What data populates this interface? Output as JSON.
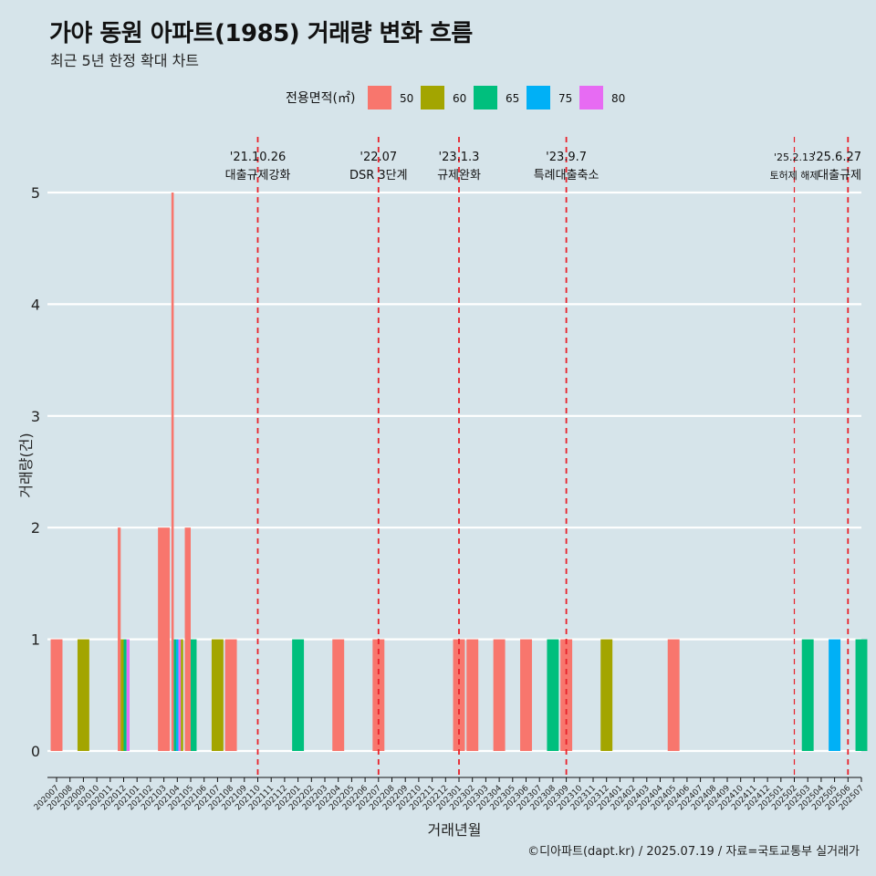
{
  "title": "가야 동원 아파트(1985) 거래량 변화 흐름",
  "subtitle": "최근 5년 한정 확대 차트",
  "caption": "©디아파트(dapt.kr) / 2025.07.19 / 자료=국토교통부 실거래가",
  "chart_data": {
    "type": "bar",
    "xlabel": "거래년월",
    "ylabel": "거래량(건)",
    "ylim": [
      0,
      5
    ],
    "yticks": [
      0,
      1,
      2,
      3,
      4,
      5
    ],
    "grid": true,
    "legend": {
      "title": "전용면적(㎡)",
      "placement": "top",
      "entries": [
        {
          "name": "50",
          "color": "#F8766D"
        },
        {
          "name": "60",
          "color": "#A3A500"
        },
        {
          "name": "65",
          "color": "#00BF7D"
        },
        {
          "name": "75",
          "color": "#00B0F6"
        },
        {
          "name": "80",
          "color": "#E76BF3"
        }
      ]
    },
    "categories": [
      "202007",
      "202008",
      "202009",
      "202010",
      "202011",
      "202012",
      "202101",
      "202102",
      "202103",
      "202104",
      "202105",
      "202106",
      "202107",
      "202108",
      "202109",
      "202110",
      "202111",
      "202112",
      "202201",
      "202202",
      "202203",
      "202204",
      "202205",
      "202206",
      "202207",
      "202208",
      "202209",
      "202210",
      "202211",
      "202212",
      "202301",
      "202302",
      "202303",
      "202304",
      "202305",
      "202306",
      "202307",
      "202308",
      "202309",
      "202310",
      "202311",
      "202312",
      "202401",
      "202402",
      "202403",
      "202404",
      "202405",
      "202406",
      "202407",
      "202408",
      "202409",
      "202410",
      "202411",
      "202412",
      "202501",
      "202502",
      "202503",
      "202504",
      "202505",
      "202506",
      "202507"
    ],
    "bars": [
      {
        "month": "202007",
        "groups": [
          {
            "area": "50",
            "value": 1
          }
        ]
      },
      {
        "month": "202009",
        "groups": [
          {
            "area": "60",
            "value": 1
          }
        ]
      },
      {
        "month": "202012",
        "groups": [
          {
            "area": "50",
            "value": 2
          },
          {
            "area": "60",
            "value": 1
          },
          {
            "area": "65",
            "value": 1
          },
          {
            "area": "80",
            "value": 1
          }
        ]
      },
      {
        "month": "202103",
        "groups": [
          {
            "area": "50",
            "value": 2
          }
        ]
      },
      {
        "month": "202104",
        "groups": [
          {
            "area": "50",
            "value": 5
          },
          {
            "area": "65",
            "value": 1
          },
          {
            "area": "75",
            "value": 1
          },
          {
            "area": "80",
            "value": 1
          },
          {
            "area": "60",
            "value": 1
          }
        ]
      },
      {
        "month": "202105",
        "groups": [
          {
            "area": "50",
            "value": 2
          },
          {
            "area": "65",
            "value": 1
          }
        ]
      },
      {
        "month": "202107",
        "groups": [
          {
            "area": "60",
            "value": 1
          }
        ]
      },
      {
        "month": "202108",
        "groups": [
          {
            "area": "50",
            "value": 1
          }
        ]
      },
      {
        "month": "202201",
        "groups": [
          {
            "area": "65",
            "value": 1
          }
        ]
      },
      {
        "month": "202204",
        "groups": [
          {
            "area": "50",
            "value": 1
          }
        ]
      },
      {
        "month": "202207",
        "groups": [
          {
            "area": "50",
            "value": 1
          }
        ]
      },
      {
        "month": "202301",
        "groups": [
          {
            "area": "50",
            "value": 1
          }
        ]
      },
      {
        "month": "202302",
        "groups": [
          {
            "area": "50",
            "value": 1
          }
        ]
      },
      {
        "month": "202304",
        "groups": [
          {
            "area": "50",
            "value": 1
          }
        ]
      },
      {
        "month": "202306",
        "groups": [
          {
            "area": "50",
            "value": 1
          }
        ]
      },
      {
        "month": "202308",
        "groups": [
          {
            "area": "65",
            "value": 1
          }
        ]
      },
      {
        "month": "202309",
        "groups": [
          {
            "area": "50",
            "value": 1
          }
        ]
      },
      {
        "month": "202312",
        "groups": [
          {
            "area": "60",
            "value": 1
          }
        ]
      },
      {
        "month": "202405",
        "groups": [
          {
            "area": "50",
            "value": 1
          }
        ]
      },
      {
        "month": "202503",
        "groups": [
          {
            "area": "65",
            "value": 1
          }
        ]
      },
      {
        "month": "202505",
        "groups": [
          {
            "area": "75",
            "value": 1
          }
        ]
      },
      {
        "month": "202507",
        "groups": [
          {
            "area": "65",
            "value": 1
          }
        ]
      }
    ],
    "annotations": [
      {
        "month": "202110",
        "date": "'21.10.26",
        "label": "대출규제강화",
        "size": "normal"
      },
      {
        "month": "202207",
        "date": "'22.07",
        "label": "DSR 3단계",
        "size": "normal"
      },
      {
        "month": "202301",
        "date": "'23.1.3",
        "label": "규제완화",
        "size": "normal"
      },
      {
        "month": "202309",
        "date": "'23.9.7",
        "label": "특례대출축소",
        "size": "normal"
      },
      {
        "month": "202502",
        "date": "'25.2.13",
        "label": "토허제 해제",
        "size": "small"
      },
      {
        "month": "202506",
        "date": "'25.6.27",
        "label": "대출규제",
        "size": "normal"
      }
    ]
  }
}
